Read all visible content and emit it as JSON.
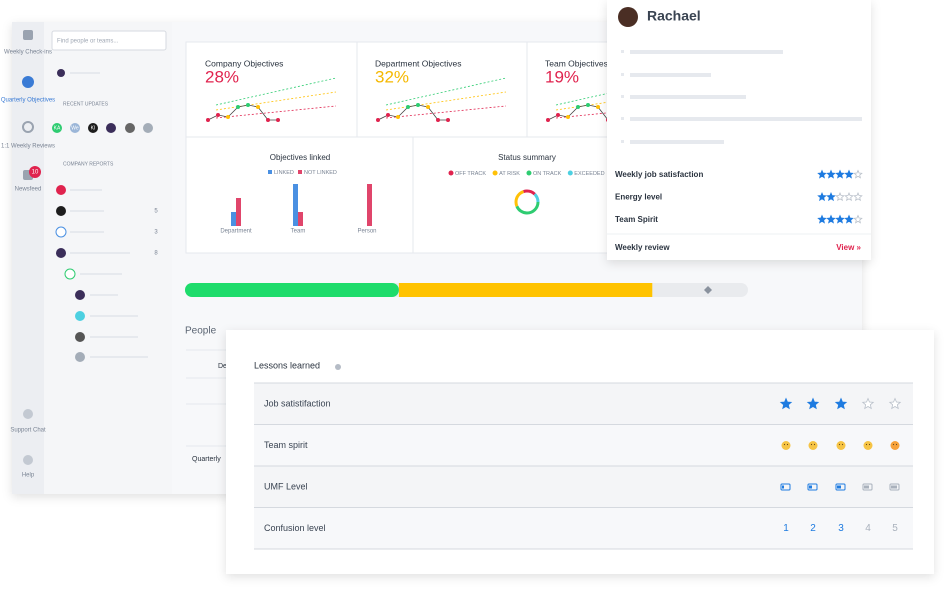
{
  "sidebar": {
    "items": [
      "Weekly Check-ins",
      "Quarterly Objectives",
      "1:1 Weekly Reviews",
      "Newsfeed",
      "Support Chat",
      "Help"
    ],
    "newsfeed_badge": "10"
  },
  "search_placeholder": "Find people or teams...",
  "recent_updates": {
    "title": "RECENT UPDATES",
    "avatars": [
      "KA",
      "We",
      "KI"
    ]
  },
  "company_reports": {
    "title": "COMPANY REPORTS",
    "counts": [
      5,
      3,
      8
    ]
  },
  "objective_cards": [
    {
      "title": "Company Objectives",
      "value": "28%",
      "color": "#e0234e"
    },
    {
      "title": "Department Objectives",
      "value": "32%",
      "color": "#f5b800"
    },
    {
      "title": "Team Objectives",
      "value": "19%",
      "color": "#e0234e"
    }
  ],
  "objectives_linked": {
    "type": "bar",
    "title": "Objectives linked",
    "categories": [
      "Department",
      "Team",
      "Person"
    ],
    "ylim": [
      0,
      50
    ],
    "series": [
      {
        "name": "LINKED",
        "color": "#4a90e2",
        "values": [
          14,
          42,
          0
        ]
      },
      {
        "name": "NOT LINKED",
        "color": "#e0456b",
        "values": [
          28,
          14,
          42
        ]
      }
    ]
  },
  "status_summary": {
    "title": "Status summary",
    "legend": [
      {
        "name": "OFF TRACK",
        "color": "#e0234e"
      },
      {
        "name": "AT RISK",
        "color": "#ffc107"
      },
      {
        "name": "ON TRACK",
        "color": "#2ecc71"
      },
      {
        "name": "EXCEEDED",
        "color": "#4dd0e1"
      }
    ]
  },
  "progress": {
    "xlim": [
      0,
      100
    ],
    "segments": [
      {
        "color": "#1edc6b",
        "value": 38
      },
      {
        "color": "#ffc300",
        "value": 45
      }
    ]
  },
  "people": {
    "title": "People",
    "column": "De",
    "row_label": "Quarterly"
  },
  "profile": {
    "name": "Rachael",
    "max_stars": 5,
    "metrics": [
      {
        "label": "Weekly job satisfaction",
        "stars": 4
      },
      {
        "label": "Energy level",
        "stars": 2
      },
      {
        "label": "Team Spirit",
        "stars": 4
      }
    ],
    "review_label": "Weekly review",
    "review_link": "View »"
  },
  "lessons": {
    "title": "Lessons learned",
    "scale": 5,
    "rows": [
      {
        "label": "Job satistifaction",
        "kind": "stars",
        "rating": 3
      },
      {
        "label": "Team spirit",
        "kind": "emoji"
      },
      {
        "label": "UMF Level",
        "kind": "battery",
        "rating": 3
      },
      {
        "label": "Confusion level",
        "kind": "numbers",
        "rating": 3,
        "options": [
          1,
          2,
          3,
          4,
          5
        ]
      }
    ]
  }
}
